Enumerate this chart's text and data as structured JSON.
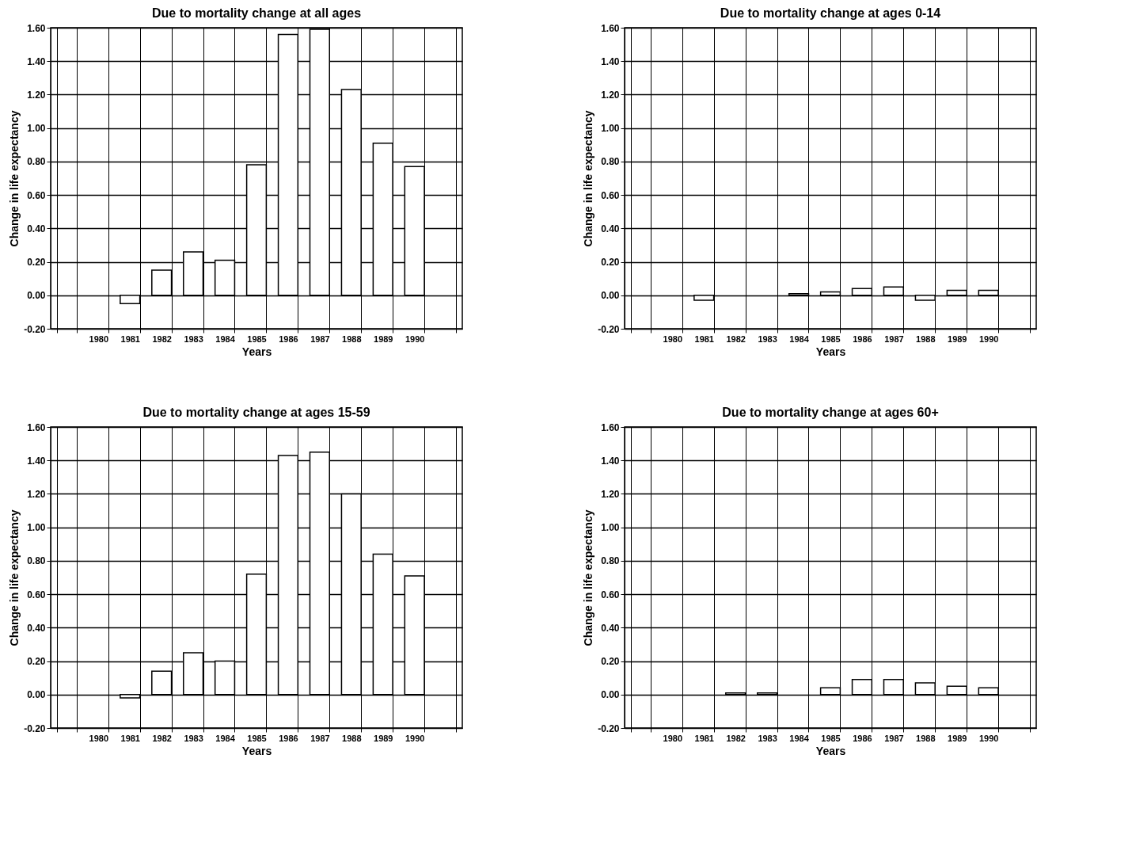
{
  "chart_data": [
    {
      "type": "bar",
      "title": "Due to mortality change at all ages",
      "xlabel": "Years",
      "ylabel": "Change in life expectancy",
      "categories": [
        null,
        "1980",
        "1981",
        "1982",
        "1983",
        "1984",
        "1985",
        "1986",
        "1987",
        "1988",
        "1989",
        "1990",
        null
      ],
      "values": [
        null,
        null,
        -0.05,
        0.15,
        0.26,
        0.21,
        0.78,
        1.56,
        1.59,
        1.23,
        0.91,
        0.77,
        null
      ],
      "color": "#ffffff",
      "ylim": [
        -0.2,
        1.6
      ],
      "yticks": [
        {
          "value": -0.2,
          "label": "-0.20"
        },
        {
          "value": 0,
          "label": "0.00"
        },
        {
          "value": 0.2,
          "label": "0.20"
        },
        {
          "value": 0.4,
          "label": "0.40"
        },
        {
          "value": 0.6,
          "label": "0.60"
        },
        {
          "value": 0.8,
          "label": "0.80"
        },
        {
          "value": 1,
          "label": "1.00"
        },
        {
          "value": 1.2,
          "label": "1.20"
        },
        {
          "value": 1.4,
          "label": "1.40"
        },
        {
          "value": 1.6,
          "label": "1.60"
        }
      ],
      "grid": true
    },
    {
      "type": "bar",
      "title": "Due to mortality change at ages 0-14",
      "xlabel": "Years",
      "ylabel": "Change in life expectancy",
      "categories": [
        null,
        "1980",
        "1981",
        "1982",
        "1983",
        "1984",
        "1985",
        "1986",
        "1987",
        "1988",
        "1989",
        "1990",
        null
      ],
      "values": [
        null,
        null,
        -0.03,
        null,
        null,
        0.01,
        0.02,
        0.04,
        0.05,
        -0.03,
        0.03,
        0.03,
        null
      ],
      "color": "#ffffff",
      "ylim": [
        -0.2,
        1.6
      ],
      "yticks": [
        {
          "value": -0.2,
          "label": "-0.20"
        },
        {
          "value": 0,
          "label": "0.00"
        },
        {
          "value": 0.2,
          "label": "0.20"
        },
        {
          "value": 0.4,
          "label": "0.40"
        },
        {
          "value": 0.6,
          "label": "0.60"
        },
        {
          "value": 0.8,
          "label": "0.80"
        },
        {
          "value": 1,
          "label": "1.00"
        },
        {
          "value": 1.2,
          "label": "1.20"
        },
        {
          "value": 1.4,
          "label": "1.40"
        },
        {
          "value": 1.6,
          "label": "1.60"
        }
      ],
      "grid": true
    },
    {
      "type": "bar",
      "title": "Due to mortality change at ages 15-59",
      "xlabel": "Years",
      "ylabel": "Change in life expectancy",
      "categories": [
        null,
        "1980",
        "1981",
        "1982",
        "1983",
        "1984",
        "1985",
        "1986",
        "1987",
        "1988",
        "1989",
        "1990",
        null
      ],
      "values": [
        null,
        null,
        -0.02,
        0.14,
        0.25,
        0.2,
        0.72,
        1.43,
        1.45,
        1.2,
        0.84,
        0.71,
        null
      ],
      "color": "#ffffff",
      "ylim": [
        -0.2,
        1.6
      ],
      "yticks": [
        {
          "value": -0.2,
          "label": "-0.20"
        },
        {
          "value": 0,
          "label": "0.00"
        },
        {
          "value": 0.2,
          "label": "0.20"
        },
        {
          "value": 0.4,
          "label": "0.40"
        },
        {
          "value": 0.6,
          "label": "0.60"
        },
        {
          "value": 0.8,
          "label": "0.80"
        },
        {
          "value": 1,
          "label": "1.00"
        },
        {
          "value": 1.2,
          "label": "1.20"
        },
        {
          "value": 1.4,
          "label": "1.40"
        },
        {
          "value": 1.6,
          "label": "1.60"
        }
      ],
      "grid": true
    },
    {
      "type": "bar",
      "title": "Due to mortality change at ages 60+",
      "xlabel": "Years",
      "ylabel": "Change in life expectancy",
      "categories": [
        null,
        "1980",
        "1981",
        "1982",
        "1983",
        "1984",
        "1985",
        "1986",
        "1987",
        "1988",
        "1989",
        "1990",
        null
      ],
      "values": [
        null,
        null,
        null,
        0.01,
        0.01,
        null,
        0.04,
        0.09,
        0.09,
        0.07,
        0.05,
        0.04,
        null
      ],
      "color": "#ffffff",
      "ylim": [
        -0.2,
        1.6
      ],
      "yticks": [
        {
          "value": -0.2,
          "label": "-0.20"
        },
        {
          "value": 0,
          "label": "0.00"
        },
        {
          "value": 0.2,
          "label": "0.20"
        },
        {
          "value": 0.4,
          "label": "0.40"
        },
        {
          "value": 0.6,
          "label": "0.60"
        },
        {
          "value": 0.8,
          "label": "0.80"
        },
        {
          "value": 1,
          "label": "1.00"
        },
        {
          "value": 1.2,
          "label": "1.20"
        },
        {
          "value": 1.4,
          "label": "1.40"
        },
        {
          "value": 1.6,
          "label": "1.60"
        }
      ],
      "grid": true
    }
  ]
}
